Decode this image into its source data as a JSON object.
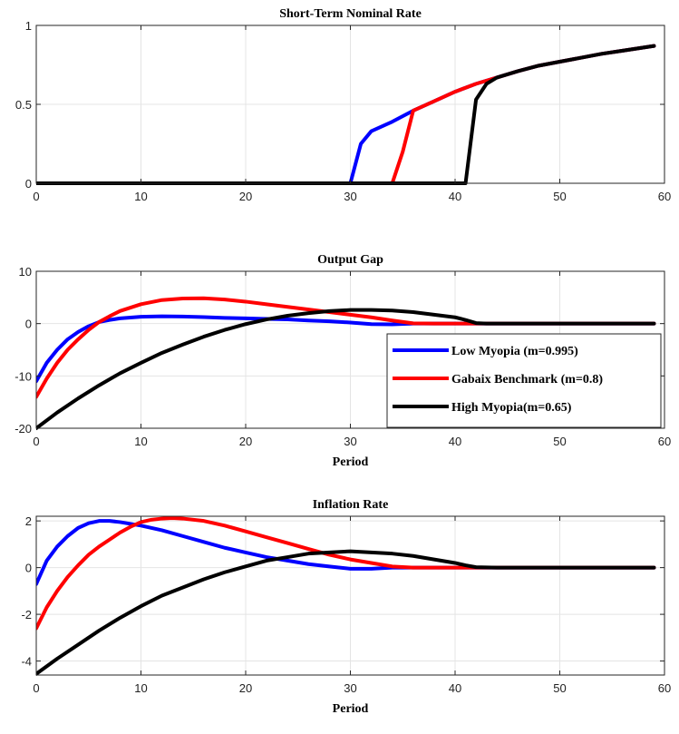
{
  "chart_data": [
    {
      "type": "line",
      "title": "Short-Term Nominal Rate",
      "xlabel": "",
      "ylabel": "",
      "xlim": [
        0,
        60
      ],
      "ylim": [
        0,
        1
      ],
      "xticks": [
        0,
        10,
        20,
        30,
        40,
        50,
        60
      ],
      "yticks": [
        0,
        0.5,
        1
      ],
      "grid": true,
      "series": [
        {
          "color": "#0000ff",
          "points": [
            [
              0,
              0
            ],
            [
              30,
              0
            ],
            [
              31,
              0.25
            ],
            [
              32,
              0.33
            ],
            [
              34,
              0.39
            ],
            [
              36,
              0.46
            ],
            [
              38,
              0.52
            ],
            [
              40,
              0.58
            ],
            [
              42,
              0.63
            ],
            [
              44,
              0.67
            ],
            [
              46,
              0.71
            ],
            [
              48,
              0.745
            ],
            [
              50,
              0.77
            ],
            [
              52,
              0.795
            ],
            [
              54,
              0.82
            ],
            [
              56,
              0.84
            ],
            [
              58,
              0.86
            ],
            [
              59,
              0.87
            ]
          ]
        },
        {
          "color": "#ff0000",
          "points": [
            [
              0,
              0
            ],
            [
              34,
              0
            ],
            [
              35,
              0.2
            ],
            [
              36,
              0.46
            ],
            [
              38,
              0.52
            ],
            [
              40,
              0.58
            ],
            [
              42,
              0.63
            ],
            [
              44,
              0.67
            ],
            [
              46,
              0.71
            ],
            [
              48,
              0.745
            ],
            [
              50,
              0.77
            ],
            [
              52,
              0.795
            ],
            [
              54,
              0.82
            ],
            [
              56,
              0.84
            ],
            [
              58,
              0.86
            ],
            [
              59,
              0.87
            ]
          ]
        },
        {
          "color": "#000000",
          "points": [
            [
              0,
              0
            ],
            [
              41,
              0
            ],
            [
              42,
              0.53
            ],
            [
              43,
              0.63
            ],
            [
              44,
              0.67
            ],
            [
              46,
              0.71
            ],
            [
              48,
              0.745
            ],
            [
              50,
              0.77
            ],
            [
              52,
              0.795
            ],
            [
              54,
              0.82
            ],
            [
              56,
              0.84
            ],
            [
              58,
              0.86
            ],
            [
              59,
              0.87
            ]
          ]
        }
      ]
    },
    {
      "type": "line",
      "title": "Output Gap",
      "xlabel": "Period",
      "ylabel": "",
      "xlim": [
        0,
        60
      ],
      "ylim": [
        -20,
        10
      ],
      "xticks": [
        0,
        10,
        20,
        30,
        40,
        50,
        60
      ],
      "yticks": [
        -20,
        -10,
        0,
        10
      ],
      "grid": true,
      "legend_position": "bottom-right",
      "series": [
        {
          "name": "Low Myopia (m=0.995)",
          "color": "#0000ff",
          "points": [
            [
              0,
              -11
            ],
            [
              1,
              -7.5
            ],
            [
              2,
              -5
            ],
            [
              3,
              -3
            ],
            [
              4,
              -1.6
            ],
            [
              5,
              -0.5
            ],
            [
              6,
              0.3
            ],
            [
              7,
              0.7
            ],
            [
              8,
              1.0
            ],
            [
              10,
              1.3
            ],
            [
              12,
              1.4
            ],
            [
              14,
              1.35
            ],
            [
              16,
              1.25
            ],
            [
              18,
              1.1
            ],
            [
              20,
              1.0
            ],
            [
              22,
              0.9
            ],
            [
              24,
              0.8
            ],
            [
              26,
              0.6
            ],
            [
              28,
              0.45
            ],
            [
              30,
              0.2
            ],
            [
              32,
              -0.1
            ],
            [
              34,
              -0.15
            ],
            [
              36,
              0
            ],
            [
              40,
              0
            ],
            [
              50,
              0
            ],
            [
              59,
              0
            ]
          ]
        },
        {
          "name": "Gabaix Benchmark (m=0.8)",
          "color": "#ff0000",
          "points": [
            [
              0,
              -14
            ],
            [
              1,
              -10.5
            ],
            [
              2,
              -7.5
            ],
            [
              3,
              -5
            ],
            [
              4,
              -3
            ],
            [
              5,
              -1.2
            ],
            [
              6,
              0.3
            ],
            [
              7,
              1.4
            ],
            [
              8,
              2.4
            ],
            [
              10,
              3.7
            ],
            [
              12,
              4.5
            ],
            [
              14,
              4.8
            ],
            [
              16,
              4.85
            ],
            [
              18,
              4.6
            ],
            [
              20,
              4.2
            ],
            [
              22,
              3.7
            ],
            [
              24,
              3.2
            ],
            [
              26,
              2.7
            ],
            [
              28,
              2.2
            ],
            [
              30,
              1.7
            ],
            [
              32,
              1.2
            ],
            [
              34,
              0.6
            ],
            [
              36,
              0.05
            ],
            [
              38,
              0
            ],
            [
              50,
              0
            ],
            [
              59,
              0
            ]
          ]
        },
        {
          "name": "High Myopia(m=0.65)",
          "color": "#000000",
          "points": [
            [
              0,
              -20
            ],
            [
              2,
              -17
            ],
            [
              4,
              -14.3
            ],
            [
              6,
              -11.8
            ],
            [
              8,
              -9.5
            ],
            [
              10,
              -7.5
            ],
            [
              12,
              -5.6
            ],
            [
              14,
              -4
            ],
            [
              16,
              -2.5
            ],
            [
              18,
              -1.2
            ],
            [
              20,
              -0.1
            ],
            [
              22,
              0.8
            ],
            [
              24,
              1.5
            ],
            [
              26,
              2.0
            ],
            [
              28,
              2.4
            ],
            [
              30,
              2.6
            ],
            [
              32,
              2.6
            ],
            [
              34,
              2.5
            ],
            [
              36,
              2.2
            ],
            [
              38,
              1.7
            ],
            [
              40,
              1.2
            ],
            [
              41,
              0.7
            ],
            [
              42,
              0.1
            ],
            [
              43,
              0
            ],
            [
              50,
              0
            ],
            [
              59,
              0
            ]
          ]
        }
      ]
    },
    {
      "type": "line",
      "title": "Inflation Rate",
      "xlabel": "Period",
      "ylabel": "",
      "xlim": [
        0,
        60
      ],
      "ylim": [
        -4.6,
        2.2
      ],
      "xticks": [
        0,
        10,
        20,
        30,
        40,
        50,
        60
      ],
      "yticks": [
        -4,
        -2,
        0,
        2
      ],
      "grid": true,
      "series": [
        {
          "color": "#0000ff",
          "points": [
            [
              0,
              -0.7
            ],
            [
              1,
              0.3
            ],
            [
              2,
              0.9
            ],
            [
              3,
              1.35
            ],
            [
              4,
              1.7
            ],
            [
              5,
              1.9
            ],
            [
              6,
              2.0
            ],
            [
              7,
              2.0
            ],
            [
              8,
              1.95
            ],
            [
              10,
              1.8
            ],
            [
              12,
              1.6
            ],
            [
              14,
              1.35
            ],
            [
              16,
              1.1
            ],
            [
              18,
              0.85
            ],
            [
              20,
              0.65
            ],
            [
              22,
              0.45
            ],
            [
              24,
              0.3
            ],
            [
              26,
              0.15
            ],
            [
              28,
              0.05
            ],
            [
              30,
              -0.05
            ],
            [
              32,
              -0.05
            ],
            [
              34,
              0
            ],
            [
              40,
              0
            ],
            [
              59,
              0
            ]
          ]
        },
        {
          "name": "",
          "color": "#ff0000",
          "points": [
            [
              0,
              -2.6
            ],
            [
              1,
              -1.7
            ],
            [
              2,
              -1.0
            ],
            [
              3,
              -0.4
            ],
            [
              4,
              0.1
            ],
            [
              5,
              0.55
            ],
            [
              6,
              0.9
            ],
            [
              7,
              1.2
            ],
            [
              8,
              1.5
            ],
            [
              9,
              1.75
            ],
            [
              10,
              1.95
            ],
            [
              11,
              2.05
            ],
            [
              12,
              2.1
            ],
            [
              13,
              2.12
            ],
            [
              14,
              2.1
            ],
            [
              16,
              2.0
            ],
            [
              18,
              1.8
            ],
            [
              20,
              1.55
            ],
            [
              22,
              1.3
            ],
            [
              24,
              1.05
            ],
            [
              26,
              0.8
            ],
            [
              28,
              0.55
            ],
            [
              30,
              0.35
            ],
            [
              32,
              0.2
            ],
            [
              34,
              0.05
            ],
            [
              36,
              0
            ],
            [
              50,
              0
            ],
            [
              59,
              0
            ]
          ]
        },
        {
          "color": "#000000",
          "points": [
            [
              0,
              -4.55
            ],
            [
              2,
              -3.9
            ],
            [
              4,
              -3.3
            ],
            [
              6,
              -2.7
            ],
            [
              8,
              -2.15
            ],
            [
              10,
              -1.65
            ],
            [
              12,
              -1.2
            ],
            [
              14,
              -0.85
            ],
            [
              16,
              -0.5
            ],
            [
              18,
              -0.2
            ],
            [
              20,
              0.05
            ],
            [
              22,
              0.3
            ],
            [
              24,
              0.45
            ],
            [
              26,
              0.6
            ],
            [
              28,
              0.65
            ],
            [
              30,
              0.7
            ],
            [
              32,
              0.65
            ],
            [
              34,
              0.6
            ],
            [
              36,
              0.5
            ],
            [
              38,
              0.35
            ],
            [
              40,
              0.2
            ],
            [
              41,
              0.1
            ],
            [
              42,
              0.02
            ],
            [
              44,
              0
            ],
            [
              50,
              0
            ],
            [
              59,
              0
            ]
          ]
        }
      ]
    }
  ]
}
